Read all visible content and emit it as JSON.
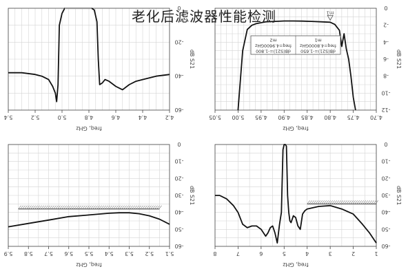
{
  "title": "老化后滤波器性能检测",
  "colors": {
    "trace": "#111111",
    "highlight": "#9a9a9a",
    "grid": "#d4d4d4",
    "axis": "#444444"
  },
  "chart_data": [
    {
      "type": "line",
      "position": "top-left",
      "x_reversed": true,
      "xlabel": "freq, GHz",
      "ylabel": "dB S21",
      "xlim": [
        4.2,
        5.4
      ],
      "ylim": [
        -60,
        0
      ],
      "x_ticks": [
        "5.4",
        "5.2",
        "5.0",
        "4.8",
        "4.6",
        "4.4",
        "4.2"
      ],
      "y_ticks": [
        "0",
        "-20",
        "-40",
        "-60"
      ],
      "series": [
        {
          "x": [
            5.4,
            5.3,
            5.2,
            5.15,
            5.1,
            5.07,
            5.05,
            5.04,
            5.03,
            5.02,
            5.0,
            4.99,
            4.98,
            4.96,
            4.94,
            4.9,
            4.85,
            4.8,
            4.78,
            4.76,
            4.74,
            4.73,
            4.72,
            4.7,
            4.68,
            4.65,
            4.6,
            4.55,
            4.5,
            4.45,
            4.4,
            4.3,
            4.2
          ],
          "y": [
            -38,
            -38,
            -39,
            -40,
            -42,
            -46,
            -50,
            -55,
            -45,
            -10,
            -3,
            -1.5,
            0,
            0,
            0,
            0,
            0,
            0,
            0,
            -1,
            -8,
            -30,
            -45,
            -44,
            -42,
            -43,
            -46,
            -48,
            -45,
            -43,
            -42,
            -40,
            -39
          ]
        }
      ]
    },
    {
      "type": "line",
      "position": "top-right",
      "x_reversed": true,
      "xlabel": "freq, GHz",
      "ylabel": "dB S21",
      "xlim": [
        4.7,
        5.05
      ],
      "ylim": [
        -12,
        0
      ],
      "x_ticks": [
        "5.05",
        "5.00",
        "4.95",
        "4.90",
        "4.85",
        "4.80",
        "4.75",
        "4.70"
      ],
      "y_ticks": [
        "0",
        "-2",
        "-4",
        "-6",
        "-8",
        "-10",
        "-12"
      ],
      "marker": {
        "name": "m1",
        "x": 4.8,
        "y": -1.65
      },
      "marker_box": [
        "m2",
        "freq=4.9600GHz",
        "dB(S21)=-1.800",
        "m1",
        "freq=4.8000GHz",
        "dB(S21)=-1.650"
      ],
      "series": [
        {
          "x": [
            5.0,
            4.99,
            4.98,
            4.97,
            4.96,
            4.94,
            4.92,
            4.9,
            4.88,
            4.86,
            4.84,
            4.82,
            4.8,
            4.79,
            4.78,
            4.775,
            4.77,
            4.765,
            4.76,
            4.755,
            4.75,
            4.745
          ],
          "y": [
            -12,
            -5,
            -2.5,
            -2.0,
            -1.8,
            -1.6,
            -1.55,
            -1.5,
            -1.5,
            -1.52,
            -1.55,
            -1.6,
            -1.65,
            -1.9,
            -2.6,
            -4.5,
            -3.0,
            -4.8,
            -6.0,
            -8.0,
            -10.5,
            -12
          ]
        }
      ]
    },
    {
      "type": "line",
      "position": "bottom-left",
      "x_reversed": true,
      "xlabel": "freq, GHz",
      "ylabel": "dB S21",
      "xlim": [
        5.1,
        5.9
      ],
      "ylim": [
        -60,
        0
      ],
      "x_ticks": [
        "5.9",
        "5.8",
        "5.7",
        "5.6",
        "5.5",
        "5.4",
        "5.3",
        "5.2",
        "5.1"
      ],
      "y_ticks": [
        "0",
        "-10",
        "-20",
        "-30",
        "-40",
        "-50",
        "-60"
      ],
      "spec_limit": {
        "y": -38,
        "x_start": 5.85,
        "x_end": 5.15
      },
      "series": [
        {
          "x": [
            5.9,
            5.8,
            5.7,
            5.6,
            5.5,
            5.4,
            5.35,
            5.3,
            5.25,
            5.2,
            5.15,
            5.1
          ],
          "y": [
            -48.5,
            -46.5,
            -44.5,
            -42.5,
            -41.5,
            -40.5,
            -40.2,
            -40.2,
            -40.8,
            -42,
            -44,
            -47
          ]
        }
      ]
    },
    {
      "type": "line",
      "position": "bottom-right",
      "x_reversed": true,
      "xlabel": "freq, GHz",
      "ylabel": "dB S21",
      "xlim": [
        1,
        8
      ],
      "ylim": [
        -60,
        0
      ],
      "x_ticks": [
        "8",
        "7",
        "6",
        "5",
        "4",
        "3",
        "2",
        "1"
      ],
      "y_ticks": [
        "0",
        "-10",
        "-20",
        "-30",
        "-40",
        "-50",
        "-60"
      ],
      "spec_limit": {
        "y": -35,
        "x_start": 4.0,
        "x_end": 1.0
      },
      "series": [
        {
          "x": [
            8,
            7.8,
            7.5,
            7.2,
            7,
            6.8,
            6.6,
            6.4,
            6.2,
            6.0,
            5.9,
            5.8,
            5.7,
            5.6,
            5.5,
            5.4,
            5.3,
            5.2,
            5.12,
            5.1,
            5.05,
            5.0,
            4.95,
            4.9,
            4.85,
            4.8,
            4.75,
            4.7,
            4.6,
            4.5,
            4.4,
            4.3,
            4.2,
            4.1,
            4.0,
            3.5,
            3.0,
            2.5,
            2.0,
            1.6,
            1.3,
            1.0
          ],
          "y": [
            -30,
            -30,
            -32,
            -36,
            -40,
            -47,
            -49,
            -48,
            -48,
            -50,
            -52,
            -54,
            -52,
            -49,
            -48,
            -52,
            -58,
            -47,
            -40,
            -30,
            -3,
            0,
            0,
            -1,
            -30,
            -40,
            -45,
            -46,
            -42,
            -43,
            -48,
            -50,
            -41,
            -39,
            -38,
            -36.5,
            -36,
            -38,
            -41,
            -47,
            -52,
            -58
          ]
        }
      ]
    }
  ]
}
